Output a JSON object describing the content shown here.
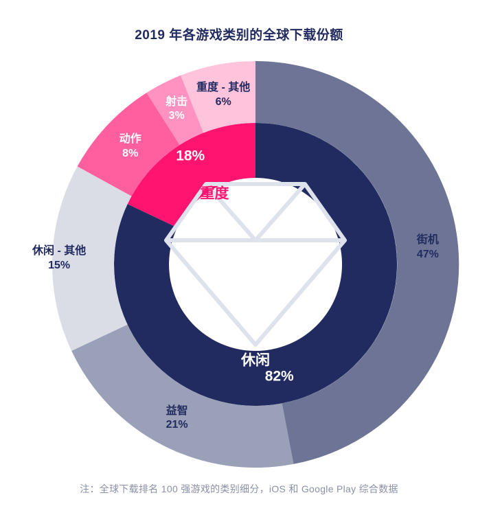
{
  "note": "注：全球下载排名 100 强游戏的类别细分，iOS 和 Google Play 综合数据",
  "watermark_icon": "diamond-gem-icon",
  "colors": {
    "navy": "#222B5F",
    "pink": "#FF1470",
    "note_gray": "#8A90A5",
    "diamond_stroke": "#DEE2ED",
    "background": "#FFFFFF"
  },
  "chart_data": {
    "type": "donut-nested",
    "title": "2019 年各游戏类别的全球下载份额",
    "start_angle_deg": 0,
    "direction": "counterclockwise-from-top",
    "legend": "none",
    "inner_series": [
      {
        "name": "重度",
        "value": 18,
        "color": "#FF1470",
        "value_label_color": "#FFFFFF",
        "name_label_color": "#FF1470"
      },
      {
        "name": "休闲",
        "value": 82,
        "color": "#222B5F",
        "value_label_color": "#FFFFFF",
        "name_label_color": "#FFFFFF"
      }
    ],
    "outer_series": [
      {
        "name": "重度 - 其他",
        "value": 6,
        "color": "#FFC3DC",
        "label_color": "#222B5F"
      },
      {
        "name": "射击",
        "value": 3,
        "color": "#FF92C1",
        "label_color": "#FFFFFF"
      },
      {
        "name": "动作",
        "value": 8,
        "color": "#FF5F9F",
        "label_color": "#FFFFFF"
      },
      {
        "name": "休闲 - 其他",
        "value": 15,
        "color": "#DADDE6",
        "label_color": "#222B5F"
      },
      {
        "name": "益智",
        "value": 21,
        "color": "#9AA0B7",
        "label_color": "#222B5F"
      },
      {
        "name": "街机",
        "value": 47,
        "color": "#6D7496",
        "label_color": "#222B5F"
      }
    ]
  }
}
